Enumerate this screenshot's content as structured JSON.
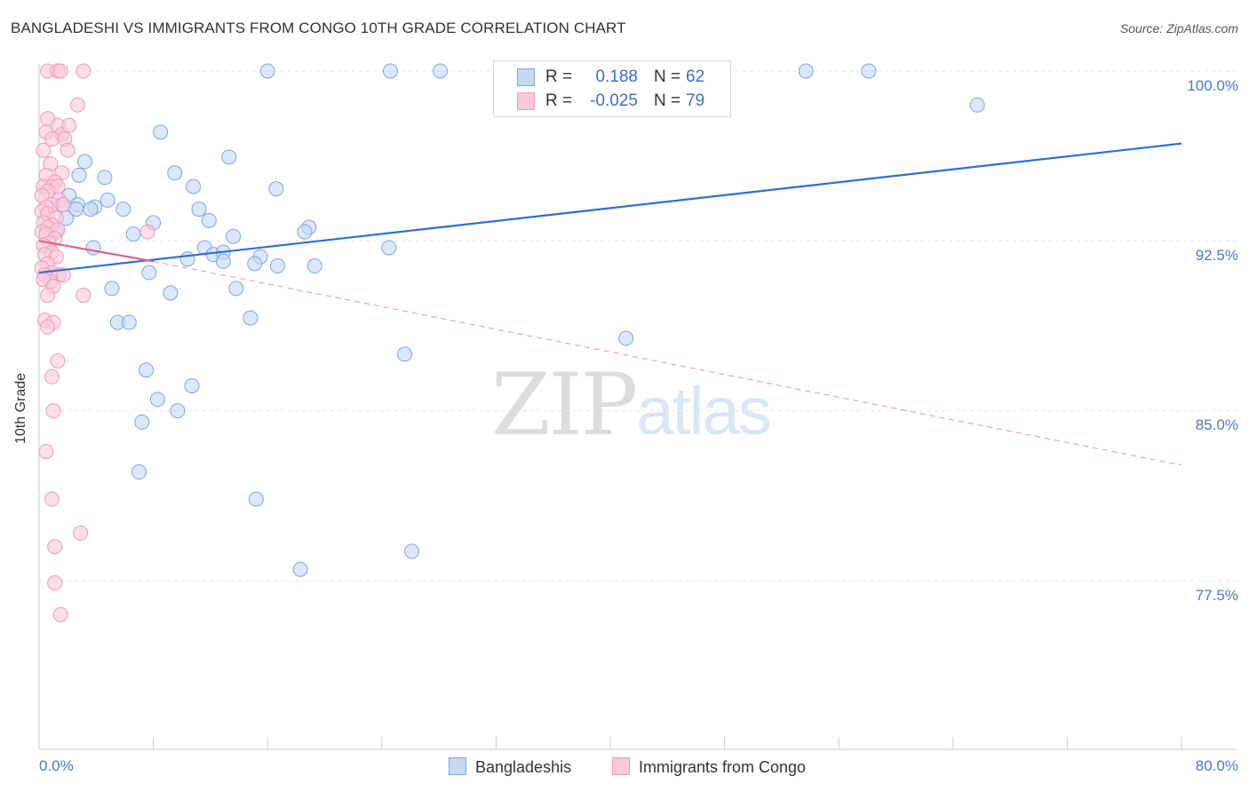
{
  "chart_data": {
    "type": "scatter",
    "title": "BANGLADESHI VS IMMIGRANTS FROM CONGO 10TH GRADE CORRELATION CHART",
    "source": "Source: ZipAtlas.com",
    "ylabel": "10th Grade",
    "xlabel": "",
    "xlim": [
      0,
      80
    ],
    "ylim": [
      70,
      100.5
    ],
    "y_ticks": [
      {
        "value": 100.0,
        "label": "100.0%"
      },
      {
        "value": 92.5,
        "label": "92.5%"
      },
      {
        "value": 85.0,
        "label": "85.0%"
      },
      {
        "value": 77.5,
        "label": "77.5%"
      }
    ],
    "x_tick_labels": {
      "min": "0.0%",
      "max": "80.0%"
    },
    "watermark": {
      "zip": "ZIP",
      "atlas": "atlas"
    },
    "series": [
      {
        "name": "Bangladeshis",
        "color": "#7aa6e0",
        "fill": "#c5d9f3",
        "line_color": "#2f6fd0",
        "R": "0.188",
        "N": "62",
        "trend": {
          "x0": 0,
          "y0": 91.1,
          "x1": 80,
          "y1": 96.8,
          "dashed_x1": 80
        },
        "points": [
          [
            16.0,
            100.7
          ],
          [
            24.6,
            100.7
          ],
          [
            28.1,
            100.7
          ],
          [
            53.7,
            100.7
          ],
          [
            58.1,
            100.7
          ],
          [
            65.7,
            98.5
          ],
          [
            8.5,
            97.3
          ],
          [
            13.3,
            96.2
          ],
          [
            3.2,
            96.0
          ],
          [
            9.5,
            95.5
          ],
          [
            4.6,
            95.3
          ],
          [
            2.8,
            95.4
          ],
          [
            10.8,
            94.9
          ],
          [
            16.6,
            94.8
          ],
          [
            2.1,
            94.5
          ],
          [
            4.8,
            94.3
          ],
          [
            2.7,
            94.1
          ],
          [
            11.2,
            93.9
          ],
          [
            3.9,
            94.0
          ],
          [
            1.6,
            94.1
          ],
          [
            2.6,
            93.9
          ],
          [
            5.9,
            93.9
          ],
          [
            3.6,
            93.9
          ],
          [
            1.9,
            93.5
          ],
          [
            8.0,
            93.3
          ],
          [
            11.9,
            93.4
          ],
          [
            18.9,
            93.1
          ],
          [
            18.6,
            92.9
          ],
          [
            6.6,
            92.8
          ],
          [
            13.6,
            92.7
          ],
          [
            1.2,
            92.9
          ],
          [
            3.8,
            92.2
          ],
          [
            11.6,
            92.2
          ],
          [
            24.5,
            92.2
          ],
          [
            12.2,
            91.9
          ],
          [
            12.9,
            92.0
          ],
          [
            15.5,
            91.8
          ],
          [
            10.4,
            91.7
          ],
          [
            12.9,
            91.6
          ],
          [
            15.1,
            91.5
          ],
          [
            16.7,
            91.4
          ],
          [
            19.3,
            91.4
          ],
          [
            7.7,
            91.1
          ],
          [
            5.1,
            90.4
          ],
          [
            13.8,
            90.4
          ],
          [
            9.2,
            90.2
          ],
          [
            14.8,
            89.1
          ],
          [
            5.5,
            88.9
          ],
          [
            6.3,
            88.9
          ],
          [
            41.1,
            88.2
          ],
          [
            25.6,
            87.5
          ],
          [
            7.5,
            86.8
          ],
          [
            10.7,
            86.1
          ],
          [
            8.3,
            85.5
          ],
          [
            9.7,
            85.0
          ],
          [
            7.2,
            84.5
          ],
          [
            7.0,
            82.3
          ],
          [
            15.2,
            81.1
          ],
          [
            26.1,
            78.8
          ],
          [
            18.3,
            78.0
          ]
        ]
      },
      {
        "name": "Immigrants from Congo",
        "color": "#ef9ab9",
        "fill": "#f8cadb",
        "line_color": "#e0608e",
        "R": "-0.025",
        "N": "79",
        "trend": {
          "x0": 0,
          "y0": 92.5,
          "x1": 8,
          "y1": 91.6,
          "dashed_x1": 80,
          "dashed_y1": 82.6
        },
        "points": [
          [
            0.6,
            100.7
          ],
          [
            1.3,
            100.7
          ],
          [
            1.5,
            100.7
          ],
          [
            3.1,
            100.7
          ],
          [
            2.7,
            98.5
          ],
          [
            0.6,
            97.9
          ],
          [
            0.5,
            97.3
          ],
          [
            1.3,
            97.6
          ],
          [
            1.6,
            97.2
          ],
          [
            2.1,
            97.6
          ],
          [
            0.9,
            97.0
          ],
          [
            1.8,
            97.0
          ],
          [
            2.0,
            96.5
          ],
          [
            0.3,
            96.5
          ],
          [
            0.8,
            95.9
          ],
          [
            1.6,
            95.5
          ],
          [
            0.5,
            95.4
          ],
          [
            1.1,
            95.1
          ],
          [
            0.3,
            94.9
          ],
          [
            0.9,
            94.9
          ],
          [
            1.3,
            94.9
          ],
          [
            0.6,
            94.7
          ],
          [
            0.2,
            94.5
          ],
          [
            1.4,
            94.3
          ],
          [
            0.9,
            94.1
          ],
          [
            0.5,
            94.0
          ],
          [
            1.7,
            94.1
          ],
          [
            0.2,
            93.8
          ],
          [
            0.6,
            93.7
          ],
          [
            1.2,
            93.5
          ],
          [
            0.3,
            93.3
          ],
          [
            0.9,
            93.2
          ],
          [
            0.6,
            93.1
          ],
          [
            1.3,
            93.0
          ],
          [
            0.2,
            92.9
          ],
          [
            0.5,
            92.8
          ],
          [
            1.1,
            92.6
          ],
          [
            0.7,
            92.4
          ],
          [
            0.3,
            92.3
          ],
          [
            0.9,
            92.0
          ],
          [
            7.6,
            92.9
          ],
          [
            0.4,
            91.9
          ],
          [
            1.2,
            91.8
          ],
          [
            0.6,
            91.5
          ],
          [
            0.2,
            91.3
          ],
          [
            0.9,
            91.1
          ],
          [
            1.4,
            91.0
          ],
          [
            0.4,
            91.0
          ],
          [
            0.8,
            90.7
          ],
          [
            1.7,
            91.0
          ],
          [
            0.3,
            90.8
          ],
          [
            1.0,
            90.5
          ],
          [
            3.1,
            90.1
          ],
          [
            0.6,
            90.1
          ],
          [
            0.4,
            89.0
          ],
          [
            1.0,
            88.9
          ],
          [
            0.6,
            88.7
          ],
          [
            1.3,
            87.2
          ],
          [
            0.9,
            86.5
          ],
          [
            1.0,
            85.0
          ],
          [
            0.5,
            83.2
          ],
          [
            0.9,
            81.1
          ],
          [
            2.9,
            79.6
          ],
          [
            1.1,
            79.0
          ],
          [
            1.1,
            77.4
          ],
          [
            1.5,
            76.0
          ]
        ]
      }
    ]
  }
}
